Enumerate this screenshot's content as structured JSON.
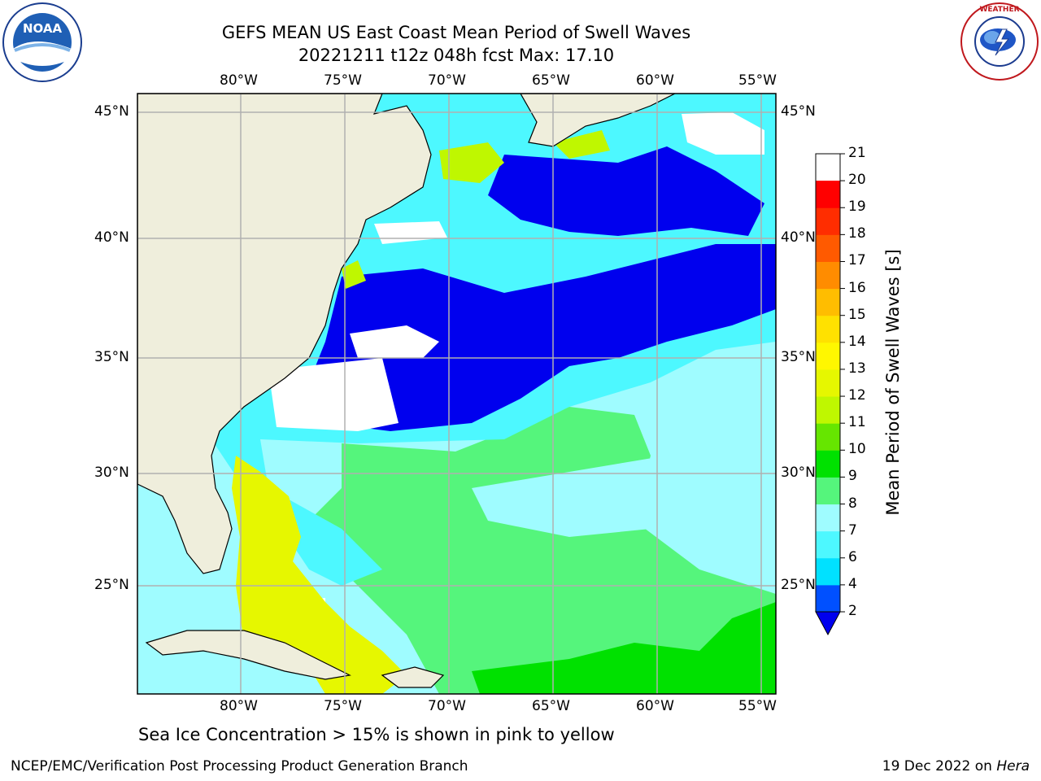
{
  "title": {
    "line1": "GEFS MEAN US East Coast Mean Period of Swell Waves",
    "line2": "20221211 t12z 048h fcst   Max: 17.10"
  },
  "map": {
    "longitude_labels": [
      "80°W",
      "75°W",
      "70°W",
      "65°W",
      "60°W",
      "55°W"
    ],
    "latitude_labels": [
      "45°N",
      "40°N",
      "35°N",
      "30°N",
      "25°N"
    ]
  },
  "colorbar": {
    "label": "Mean Period of Swell Waves [s]",
    "ticks": [
      "2",
      "4",
      "6",
      "7",
      "8",
      "9",
      "10",
      "11",
      "12",
      "13",
      "14",
      "15",
      "16",
      "17",
      "18",
      "19",
      "20",
      "21"
    ],
    "colors": [
      "#0050ff",
      "#00e1ff",
      "#4df8ff",
      "#9ffcff",
      "#55f57c",
      "#00e100",
      "#66e600",
      "#bff700",
      "#e6f700",
      "#fff700",
      "#ffe100",
      "#ffbd00",
      "#ff8c00",
      "#ff5a00",
      "#ff2d00",
      "#ff0000"
    ],
    "under_color": "#0000ee"
  },
  "colors": {
    "land": "#efeedc",
    "deep_blue": "#0000ee",
    "light_green": "#55f57c",
    "pale_cyan": "#9ffcff",
    "cyan": "#4df8ff",
    "yellow_green": "#bff700"
  },
  "note": "Sea Ice Concentration > 15% is shown in pink to yellow",
  "footer": {
    "left": "NCEP/EMC/Verification Post Processing Product Generation Branch",
    "right_date": "19 Dec 2022 on ",
    "right_host": "Hera"
  },
  "logos": {
    "left": {
      "icon": "noaa-logo-icon",
      "text": "NOAA"
    },
    "right": {
      "icon": "nws-logo-icon",
      "text": "NATIONAL WEATHER SERVICE"
    }
  }
}
